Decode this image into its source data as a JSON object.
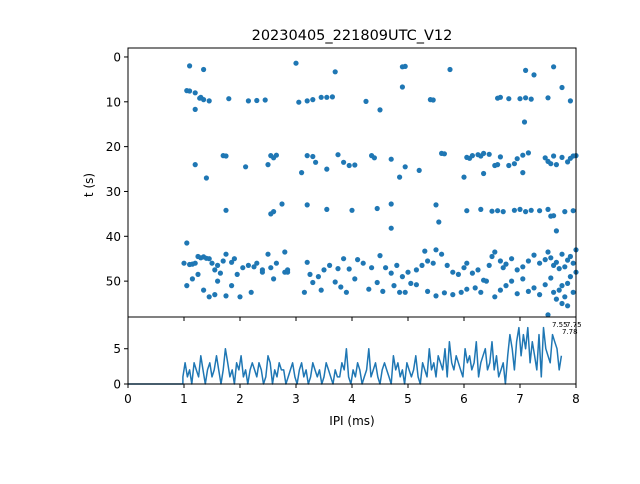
{
  "chart_data": [
    {
      "type": "scatter",
      "title": "20230405_221809UTC_V12",
      "xlabel": "",
      "ylabel": "t (s)",
      "xlim": [
        0,
        8
      ],
      "ylim": [
        58,
        -2
      ],
      "y_inverted": true,
      "y_ticks": [
        0,
        10,
        20,
        30,
        40,
        50
      ],
      "x_ticks": [
        0,
        1,
        2,
        3,
        4,
        5,
        6,
        7,
        8
      ],
      "show_x_tick_labels": false,
      "color": "#1f77b4",
      "points": [
        [
          1.1,
          2.0
        ],
        [
          1.35,
          2.8
        ],
        [
          3.0,
          1.4
        ],
        [
          3.7,
          3.3
        ],
        [
          4.9,
          2.2
        ],
        [
          4.95,
          2.1
        ],
        [
          5.75,
          2.8
        ],
        [
          7.1,
          3.0
        ],
        [
          7.6,
          2.2
        ],
        [
          7.25,
          4.0
        ],
        [
          4.9,
          6.7
        ],
        [
          7.75,
          6.8
        ],
        [
          1.05,
          7.5
        ],
        [
          1.1,
          7.6
        ],
        [
          1.2,
          8.0
        ],
        [
          1.3,
          9.0
        ],
        [
          1.35,
          9.5
        ],
        [
          1.45,
          9.8
        ],
        [
          1.8,
          9.3
        ],
        [
          2.15,
          9.8
        ],
        [
          2.3,
          9.7
        ],
        [
          2.45,
          9.6
        ],
        [
          3.05,
          10.1
        ],
        [
          3.2,
          9.8
        ],
        [
          3.3,
          9.5
        ],
        [
          3.45,
          9.0
        ],
        [
          3.55,
          9.0
        ],
        [
          3.65,
          8.9
        ],
        [
          4.25,
          9.9
        ],
        [
          4.5,
          11.8
        ],
        [
          1.2,
          11.7
        ],
        [
          1.28,
          9.2
        ],
        [
          5.4,
          9.5
        ],
        [
          5.45,
          9.6
        ],
        [
          6.6,
          9.2
        ],
        [
          6.65,
          9.0
        ],
        [
          6.8,
          9.3
        ],
        [
          7.0,
          9.3
        ],
        [
          7.1,
          9.1
        ],
        [
          7.2,
          9.4
        ],
        [
          7.5,
          9.1
        ],
        [
          7.9,
          9.8
        ],
        [
          7.08,
          14.5
        ],
        [
          1.2,
          24.0
        ],
        [
          1.7,
          22.0
        ],
        [
          1.75,
          22.1
        ],
        [
          2.1,
          24.5
        ],
        [
          2.5,
          24.0
        ],
        [
          2.55,
          22.0
        ],
        [
          2.6,
          22.5
        ],
        [
          2.65,
          21.9
        ],
        [
          3.2,
          22.0
        ],
        [
          3.3,
          22.2
        ],
        [
          3.35,
          23.5
        ],
        [
          3.55,
          25.0
        ],
        [
          3.75,
          21.8
        ],
        [
          3.85,
          23.5
        ],
        [
          3.95,
          24.2
        ],
        [
          4.05,
          24.1
        ],
        [
          4.35,
          22.0
        ],
        [
          4.4,
          22.5
        ],
        [
          4.7,
          22.8
        ],
        [
          4.85,
          26.8
        ],
        [
          4.95,
          24.5
        ],
        [
          5.2,
          25.3
        ],
        [
          3.1,
          25.8
        ],
        [
          5.6,
          21.5
        ],
        [
          5.65,
          21.6
        ],
        [
          6.05,
          22.4
        ],
        [
          6.1,
          22.6
        ],
        [
          6.15,
          22.0
        ],
        [
          6.25,
          21.8
        ],
        [
          6.3,
          22.1
        ],
        [
          6.35,
          21.5
        ],
        [
          6.45,
          21.7
        ],
        [
          6.55,
          24.2
        ],
        [
          6.6,
          24.0
        ],
        [
          6.65,
          22.3
        ],
        [
          6.8,
          24.2
        ],
        [
          6.9,
          23.8
        ],
        [
          6.95,
          22.7
        ],
        [
          7.05,
          21.9
        ],
        [
          7.15,
          21.4
        ],
        [
          7.45,
          22.5
        ],
        [
          7.5,
          23.3
        ],
        [
          7.55,
          23.8
        ],
        [
          7.6,
          22.1
        ],
        [
          7.65,
          24.0
        ],
        [
          7.75,
          22.4
        ],
        [
          7.85,
          23.4
        ],
        [
          7.9,
          22.6
        ],
        [
          7.95,
          22.1
        ],
        [
          8.0,
          22.0
        ],
        [
          6.0,
          26.8
        ],
        [
          6.35,
          26.0
        ],
        [
          7.05,
          25.8
        ],
        [
          1.4,
          27.0
        ],
        [
          1.75,
          34.2
        ],
        [
          2.55,
          35.0
        ],
        [
          2.6,
          34.5
        ],
        [
          2.75,
          32.8
        ],
        [
          3.2,
          33.0
        ],
        [
          3.55,
          34.0
        ],
        [
          4.0,
          34.2
        ],
        [
          4.45,
          33.8
        ],
        [
          4.7,
          32.8
        ],
        [
          5.5,
          33.0
        ],
        [
          6.05,
          34.3
        ],
        [
          6.3,
          34.0
        ],
        [
          6.5,
          34.4
        ],
        [
          6.6,
          34.3
        ],
        [
          6.7,
          34.5
        ],
        [
          6.9,
          34.2
        ],
        [
          7.0,
          34.0
        ],
        [
          7.1,
          34.5
        ],
        [
          7.2,
          34.2
        ],
        [
          7.35,
          34.3
        ],
        [
          7.5,
          34.0
        ],
        [
          7.55,
          35.5
        ],
        [
          7.6,
          35.4
        ],
        [
          7.65,
          38.8
        ],
        [
          7.8,
          34.5
        ],
        [
          7.95,
          34.3
        ],
        [
          4.7,
          38.2
        ],
        [
          5.55,
          36.8
        ],
        [
          1.05,
          41.5
        ],
        [
          1.0,
          46.0
        ],
        [
          1.1,
          46.3
        ],
        [
          1.15,
          46.2
        ],
        [
          1.2,
          46.0
        ],
        [
          1.25,
          44.5
        ],
        [
          1.3,
          44.8
        ],
        [
          1.35,
          44.6
        ],
        [
          1.4,
          44.9
        ],
        [
          1.45,
          45.0
        ],
        [
          1.5,
          46.0
        ],
        [
          1.55,
          47.5
        ],
        [
          1.6,
          46.5
        ],
        [
          1.7,
          45.5
        ],
        [
          1.75,
          44.0
        ],
        [
          1.85,
          45.8
        ],
        [
          1.9,
          45.0
        ],
        [
          2.05,
          47.0
        ],
        [
          2.15,
          46.5
        ],
        [
          2.25,
          46.8
        ],
        [
          2.4,
          47.5
        ],
        [
          2.55,
          47.0
        ],
        [
          2.65,
          46.0
        ],
        [
          2.8,
          48.0
        ],
        [
          2.85,
          47.5
        ],
        [
          2.5,
          44.0
        ],
        [
          2.8,
          43.5
        ],
        [
          1.05,
          51.0
        ],
        [
          1.15,
          49.5
        ],
        [
          1.25,
          48.5
        ],
        [
          1.35,
          52.0
        ],
        [
          1.45,
          53.5
        ],
        [
          1.55,
          53.0
        ],
        [
          1.6,
          50.0
        ],
        [
          1.75,
          53.3
        ],
        [
          1.85,
          51.0
        ],
        [
          2.0,
          53.5
        ],
        [
          2.2,
          52.5
        ],
        [
          2.4,
          48.0
        ],
        [
          2.6,
          49.5
        ],
        [
          2.85,
          48.0
        ],
        [
          1.65,
          48.2
        ],
        [
          1.95,
          48.5
        ],
        [
          2.3,
          46.0
        ],
        [
          3.2,
          45.8
        ],
        [
          3.25,
          48.5
        ],
        [
          3.3,
          50.3
        ],
        [
          3.4,
          49.0
        ],
        [
          3.5,
          47.5
        ],
        [
          3.6,
          46.5
        ],
        [
          3.75,
          47.2
        ],
        [
          3.85,
          45.0
        ],
        [
          3.95,
          47.3
        ],
        [
          4.1,
          45.2
        ],
        [
          4.2,
          46.0
        ],
        [
          4.35,
          47.0
        ],
        [
          4.5,
          44.3
        ],
        [
          4.6,
          47.0
        ],
        [
          4.7,
          48.2
        ],
        [
          4.8,
          46.5
        ],
        [
          4.9,
          49.0
        ],
        [
          5.0,
          48.0
        ],
        [
          5.05,
          50.5
        ],
        [
          5.15,
          47.5
        ],
        [
          5.25,
          46.5
        ],
        [
          5.3,
          43.3
        ],
        [
          5.35,
          45.5
        ],
        [
          5.45,
          46.0
        ],
        [
          5.5,
          43.0
        ],
        [
          5.6,
          44.0
        ],
        [
          5.7,
          46.5
        ],
        [
          5.8,
          48.0
        ],
        [
          5.9,
          48.5
        ],
        [
          6.0,
          47.0
        ],
        [
          3.15,
          52.5
        ],
        [
          3.45,
          52.0
        ],
        [
          3.7,
          50.2
        ],
        [
          3.9,
          52.5
        ],
        [
          4.05,
          49.5
        ],
        [
          4.3,
          51.8
        ],
        [
          4.55,
          52.3
        ],
        [
          4.75,
          51.0
        ],
        [
          4.85,
          52.5
        ],
        [
          4.95,
          52.5
        ],
        [
          5.15,
          50.8
        ],
        [
          5.35,
          52.3
        ],
        [
          5.5,
          53.3
        ],
        [
          5.65,
          52.6
        ],
        [
          5.8,
          53.0
        ],
        [
          5.95,
          52.5
        ],
        [
          6.05,
          51.8
        ],
        [
          3.8,
          51.3
        ],
        [
          4.45,
          50.3
        ],
        [
          6.05,
          46.0
        ],
        [
          6.15,
          48.2
        ],
        [
          6.25,
          47.5
        ],
        [
          6.35,
          49.8
        ],
        [
          6.45,
          46.5
        ],
        [
          6.5,
          44.5
        ],
        [
          6.55,
          43.5
        ],
        [
          6.65,
          45.5
        ],
        [
          6.7,
          47.0
        ],
        [
          6.75,
          46.2
        ],
        [
          6.85,
          45.0
        ],
        [
          6.95,
          47.5
        ],
        [
          7.05,
          46.8
        ],
        [
          7.15,
          45.5
        ],
        [
          7.25,
          44.2
        ],
        [
          7.35,
          46.0
        ],
        [
          7.45,
          45.2
        ],
        [
          7.5,
          43.5
        ],
        [
          7.55,
          44.8
        ],
        [
          7.6,
          46.5
        ],
        [
          7.65,
          45.8
        ],
        [
          7.7,
          47.2
        ],
        [
          7.75,
          44.0
        ],
        [
          7.8,
          46.8
        ],
        [
          7.85,
          45.3
        ],
        [
          7.9,
          44.5
        ],
        [
          7.95,
          46.0
        ],
        [
          8.0,
          43.0
        ],
        [
          6.2,
          51.5
        ],
        [
          6.3,
          52.5
        ],
        [
          6.4,
          50.0
        ],
        [
          6.55,
          53.5
        ],
        [
          6.65,
          52.0
        ],
        [
          6.75,
          51.0
        ],
        [
          6.85,
          50.0
        ],
        [
          6.95,
          52.8
        ],
        [
          7.05,
          49.5
        ],
        [
          7.15,
          52.3
        ],
        [
          7.25,
          51.5
        ],
        [
          7.35,
          53.0
        ],
        [
          7.45,
          50.8
        ],
        [
          7.55,
          49.3
        ],
        [
          7.6,
          52.5
        ],
        [
          7.65,
          54.0
        ],
        [
          7.7,
          52.0
        ],
        [
          7.75,
          51.0
        ],
        [
          7.8,
          53.5
        ],
        [
          7.85,
          50.5
        ],
        [
          7.9,
          49.0
        ],
        [
          7.95,
          52.5
        ],
        [
          8.0,
          48.0
        ],
        [
          7.5,
          57.5
        ],
        [
          7.75,
          55.0
        ],
        [
          7.85,
          55.5
        ]
      ]
    },
    {
      "type": "line",
      "title": "",
      "xlabel": "IPI (ms)",
      "ylabel": "",
      "xlim": [
        0,
        8
      ],
      "ylim": [
        0,
        9.5
      ],
      "x_ticks": [
        0,
        1,
        2,
        3,
        4,
        5,
        6,
        7,
        8
      ],
      "y_ticks": [
        0,
        5
      ],
      "color": "#1f77b4",
      "x_start": 0.98,
      "x_step": 0.04,
      "y": [
        1,
        3,
        1,
        2,
        0,
        3,
        2,
        1,
        4,
        2,
        0,
        2,
        3,
        1,
        2,
        4,
        2,
        0,
        2,
        5,
        3,
        1,
        2,
        0,
        3,
        2,
        4,
        1,
        2,
        0,
        2,
        3,
        2,
        1,
        3,
        2,
        0,
        1,
        4,
        3,
        0,
        2,
        1,
        3,
        2,
        2,
        0,
        1,
        2,
        3,
        1,
        0,
        2,
        3,
        1,
        2,
        0,
        1,
        3,
        2,
        1,
        2,
        0,
        1,
        3,
        2,
        1,
        0,
        2,
        1,
        1,
        3,
        2,
        5,
        1,
        0,
        2,
        1,
        3,
        2,
        0,
        1,
        2,
        5,
        1,
        2,
        3,
        1,
        0,
        2,
        3,
        2,
        1,
        0,
        4,
        2,
        3,
        1,
        2,
        0,
        3,
        2,
        1,
        2,
        4,
        1,
        0,
        3,
        2,
        1,
        5,
        2,
        3,
        1,
        4,
        3,
        2,
        5,
        1,
        6,
        3,
        2,
        4,
        3,
        2,
        1,
        5,
        3,
        4,
        2,
        3,
        6,
        1,
        3,
        4,
        5,
        2,
        3,
        6,
        2,
        4,
        1,
        2,
        3,
        0,
        4,
        7,
        5,
        2,
        6,
        8,
        4,
        7,
        5,
        8,
        3,
        6,
        4,
        2,
        7,
        1,
        8,
        5,
        4,
        3,
        7,
        6,
        5,
        2,
        4
      ],
      "annotations": [
        "7.55",
        "7.75",
        "7.78"
      ]
    }
  ]
}
